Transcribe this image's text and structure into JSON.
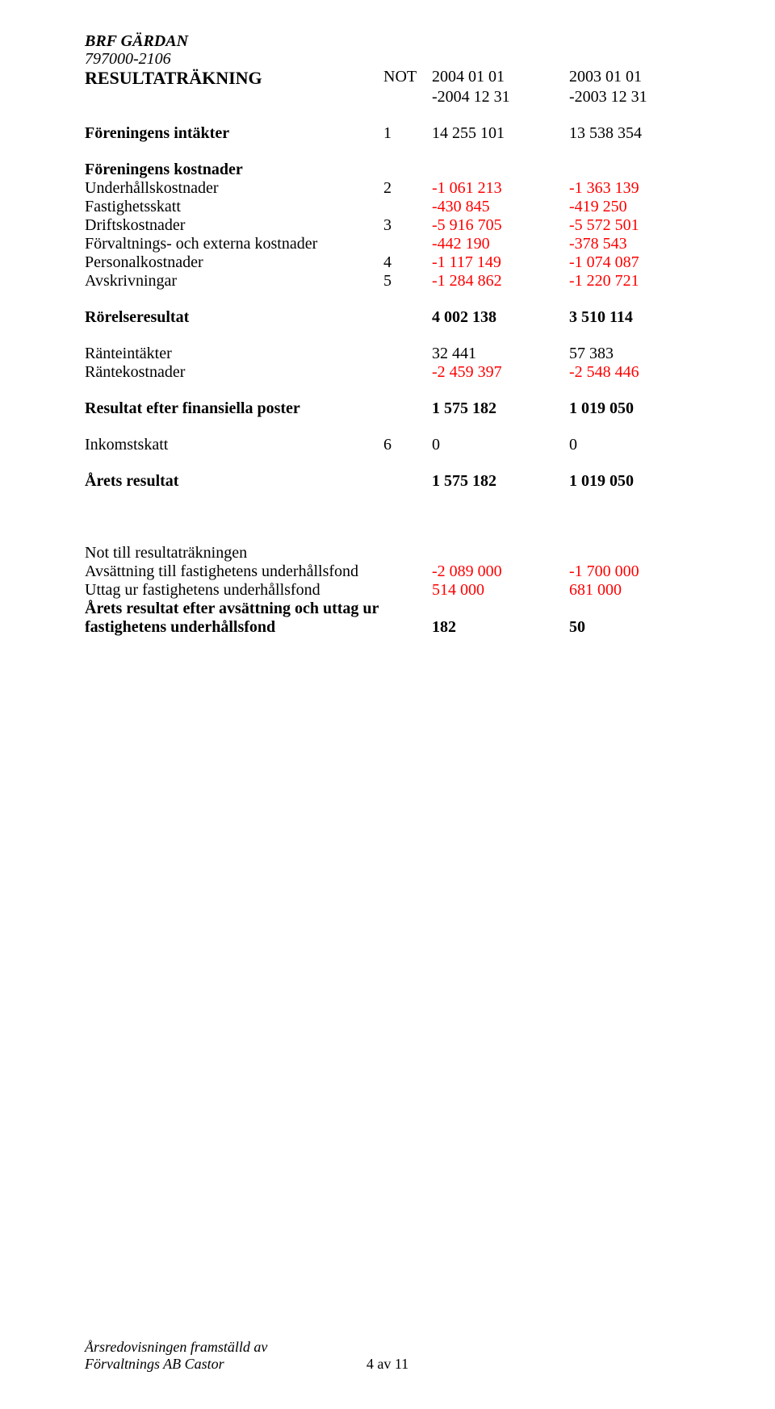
{
  "header": {
    "org_name": "BRF GÄRDAN",
    "org_number": "797000-2106"
  },
  "title_row": {
    "title": "RESULTATRÄKNING",
    "not_label": "NOT",
    "period1_line1": "2004 01 01",
    "period1_line2": "-2004 12 31",
    "period2_line1": "2003 01 01",
    "period2_line2": "-2003 12 31"
  },
  "rows": {
    "intakter": {
      "label": "Föreningens intäkter",
      "not": "1",
      "v1": "14 255 101",
      "v2": "13 538 354"
    },
    "kostnader_hdr": {
      "label": "Föreningens kostnader"
    },
    "underhall": {
      "label": "Underhållskostnader",
      "not": "2",
      "v1": "-1 061 213",
      "v2": "-1 363 139"
    },
    "fastighetsskatt": {
      "label": "Fastighetsskatt",
      "v1": "-430 845",
      "v2": "-419 250"
    },
    "drift": {
      "label": "Driftskostnader",
      "not": "3",
      "v1": "-5 916 705",
      "v2": "-5 572 501"
    },
    "forvaltning": {
      "label": "Förvaltnings- och externa kostnader",
      "v1": "-442 190",
      "v2": "-378 543"
    },
    "personal": {
      "label": "Personalkostnader",
      "not": "4",
      "v1": "-1 117 149",
      "v2": "-1 074 087"
    },
    "avskriv": {
      "label": "Avskrivningar",
      "not": "5",
      "v1": "-1 284 862",
      "v2": "-1 220 721"
    },
    "rorelseres": {
      "label": "Rörelseresultat",
      "v1": "4 002 138",
      "v2": "3 510 114"
    },
    "ranteint": {
      "label": "Ränteintäkter",
      "v1": "32 441",
      "v2": "57 383"
    },
    "rantekost": {
      "label": "Räntekostnader",
      "v1": "-2 459 397",
      "v2": "-2 548 446"
    },
    "resfin": {
      "label": "Resultat efter finansiella poster",
      "v1": "1 575 182",
      "v2": "1 019 050"
    },
    "inkomstskatt": {
      "label": "Inkomstskatt",
      "not": "6",
      "v1": "0",
      "v2": "0"
    },
    "aretsres": {
      "label": "Årets resultat",
      "v1": "1 575 182",
      "v2": "1 019 050"
    },
    "nothdr": {
      "label": "Not till resultaträkningen"
    },
    "avsattning": {
      "label": "Avsättning till fastighetens underhållsfond",
      "v1": "-2 089 000",
      "v2": "-1 700 000"
    },
    "uttag": {
      "label": "Uttag ur fastighetens underhållsfond",
      "v1": "514 000",
      "v2": "681 000"
    },
    "efteravs_l1": {
      "label": "Årets resultat efter avsättning och uttag ur"
    },
    "efteravs_l2": {
      "label": "fastighetens underhållsfond",
      "v1": "182",
      "v2": "50"
    }
  },
  "footer": {
    "line1": "Årsredovisningen framställd av",
    "line2": "Förvaltnings AB Castor",
    "pagenum": "4 av 11"
  },
  "colors": {
    "text": "#000000",
    "negative": "#ff0000",
    "background": "#ffffff"
  }
}
